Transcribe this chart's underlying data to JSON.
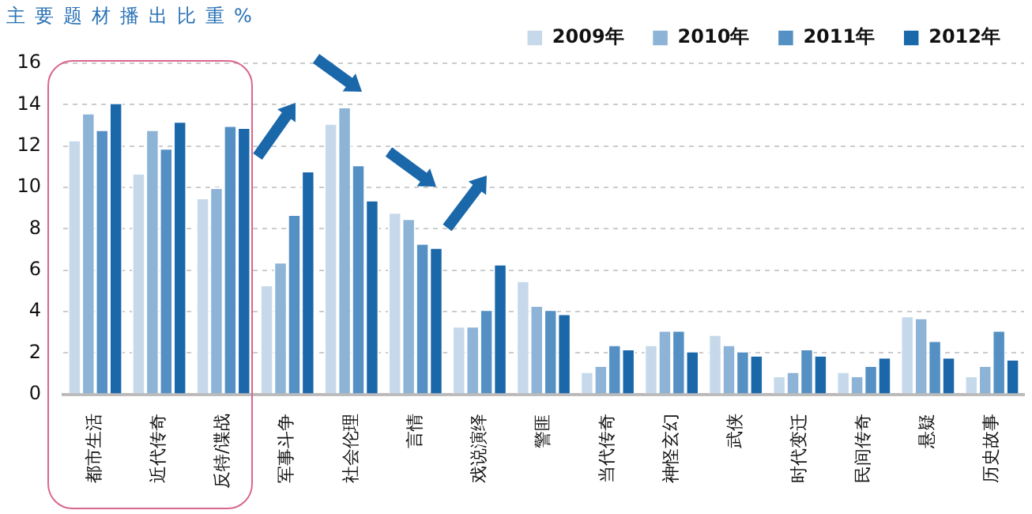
{
  "chart_data": {
    "type": "bar",
    "title": "主要题材播出比重%",
    "categories": [
      "都市生活",
      "近代传奇",
      "反特/谍战",
      "军事斗争",
      "社会伦理",
      "言情",
      "戏说演绎",
      "警匪",
      "当代传奇",
      "神怪玄幻",
      "武侠",
      "时代变迁",
      "民间传奇",
      "悬疑",
      "历史故事"
    ],
    "series": [
      {
        "name": "2009年",
        "color": "#c6d9ea",
        "values": [
          12.3,
          10.7,
          9.5,
          5.3,
          13.1,
          8.8,
          3.3,
          5.5,
          1.1,
          2.4,
          2.9,
          0.9,
          1.1,
          3.8,
          0.9
        ]
      },
      {
        "name": "2010年",
        "color": "#8db3d6",
        "values": [
          13.6,
          12.8,
          10.0,
          6.4,
          13.9,
          8.5,
          3.3,
          4.3,
          1.4,
          3.1,
          2.4,
          1.1,
          0.9,
          3.7,
          1.4
        ]
      },
      {
        "name": "2011年",
        "color": "#5590c4",
        "values": [
          12.8,
          11.9,
          13.0,
          8.7,
          11.1,
          7.3,
          4.1,
          4.1,
          2.4,
          3.1,
          2.1,
          2.2,
          1.4,
          2.6,
          3.1
        ]
      },
      {
        "name": "2012年",
        "color": "#1a68aa",
        "values": [
          14.1,
          13.2,
          12.9,
          10.8,
          9.4,
          7.1,
          6.3,
          3.9,
          2.2,
          2.1,
          1.9,
          1.9,
          1.8,
          1.8,
          1.7
        ]
      }
    ],
    "ylim": [
      0,
      16
    ],
    "yticks": [
      0,
      2,
      4,
      6,
      8,
      10,
      12,
      14,
      16
    ],
    "grid": "y",
    "legend": "top right"
  }
}
